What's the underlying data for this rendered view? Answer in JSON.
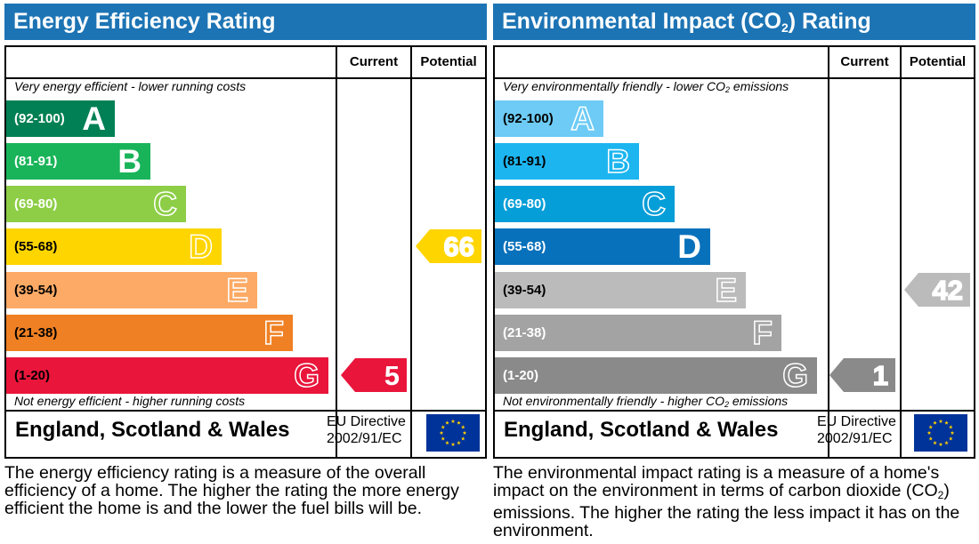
{
  "chart_data": [
    {
      "type": "bar",
      "title": "Energy Efficiency Rating",
      "columns": [
        "Current",
        "Potential"
      ],
      "top_caption": "Very energy efficient - lower running costs",
      "bottom_caption": "Not energy efficient - higher running costs",
      "bands": [
        {
          "range": "(92-100)",
          "letter": "A",
          "color": "#008054"
        },
        {
          "range": "(81-91)",
          "letter": "B",
          "color": "#19b459"
        },
        {
          "range": "(69-80)",
          "letter": "C",
          "color": "#8dce46"
        },
        {
          "range": "(55-68)",
          "letter": "D",
          "color": "#ffd500"
        },
        {
          "range": "(39-54)",
          "letter": "E",
          "color": "#fcaa65"
        },
        {
          "range": "(21-38)",
          "letter": "F",
          "color": "#ef8023"
        },
        {
          "range": "(1-20)",
          "letter": "G",
          "color": "#e9153b"
        }
      ],
      "current": {
        "value": "5",
        "band": "G",
        "color": "#e9153b"
      },
      "potential": {
        "value": "66",
        "band": "D",
        "color": "#ffd500"
      },
      "footer": {
        "region": "England, Scotland & Wales",
        "directive_line1": "EU Directive",
        "directive_line2": "2002/91/EC"
      },
      "description": "The energy efficiency rating is a measure of the overall efficiency of a home. The higher the rating the more energy efficient the home is and the lower the fuel bills will be."
    },
    {
      "type": "bar",
      "title_pre": "Environmental Impact (CO",
      "title_sub": "2",
      "title_post": ") Rating",
      "columns": [
        "Current",
        "Potential"
      ],
      "top_caption_pre": "Very environmentally friendly - lower CO",
      "top_caption_sub": "2",
      "top_caption_post": " emissions",
      "bottom_caption_pre": "Not environmentally friendly - higher CO",
      "bottom_caption_sub": "2",
      "bottom_caption_post": " emissions",
      "bands": [
        {
          "range": "(92-100)",
          "letter": "A",
          "color": "#6dcbf5"
        },
        {
          "range": "(81-91)",
          "letter": "B",
          "color": "#1cb5f0"
        },
        {
          "range": "(69-80)",
          "letter": "C",
          "color": "#069ed8"
        },
        {
          "range": "(55-68)",
          "letter": "D",
          "color": "#0871bb"
        },
        {
          "range": "(39-54)",
          "letter": "E",
          "color": "#bbbbbb"
        },
        {
          "range": "(21-38)",
          "letter": "F",
          "color": "#a3a3a3"
        },
        {
          "range": "(1-20)",
          "letter": "G",
          "color": "#8a8a8a"
        }
      ],
      "current": {
        "value": "1",
        "band": "G",
        "color": "#8a8a8a"
      },
      "potential": {
        "value": "42",
        "band": "E",
        "color": "#bbbbbb"
      },
      "footer": {
        "region": "England, Scotland & Wales",
        "directive_line1": "EU Directive",
        "directive_line2": "2002/91/EC"
      },
      "description_pre": "The environmental impact rating is a measure of a home's impact on the environment in terms of carbon dioxide (CO",
      "description_sub": "2",
      "description_post": ") emissions. The higher the rating the less impact it has on the environment."
    }
  ],
  "colors": {
    "header": "#1d74b4",
    "flag": "#003399",
    "stars": "#ffcc00"
  }
}
